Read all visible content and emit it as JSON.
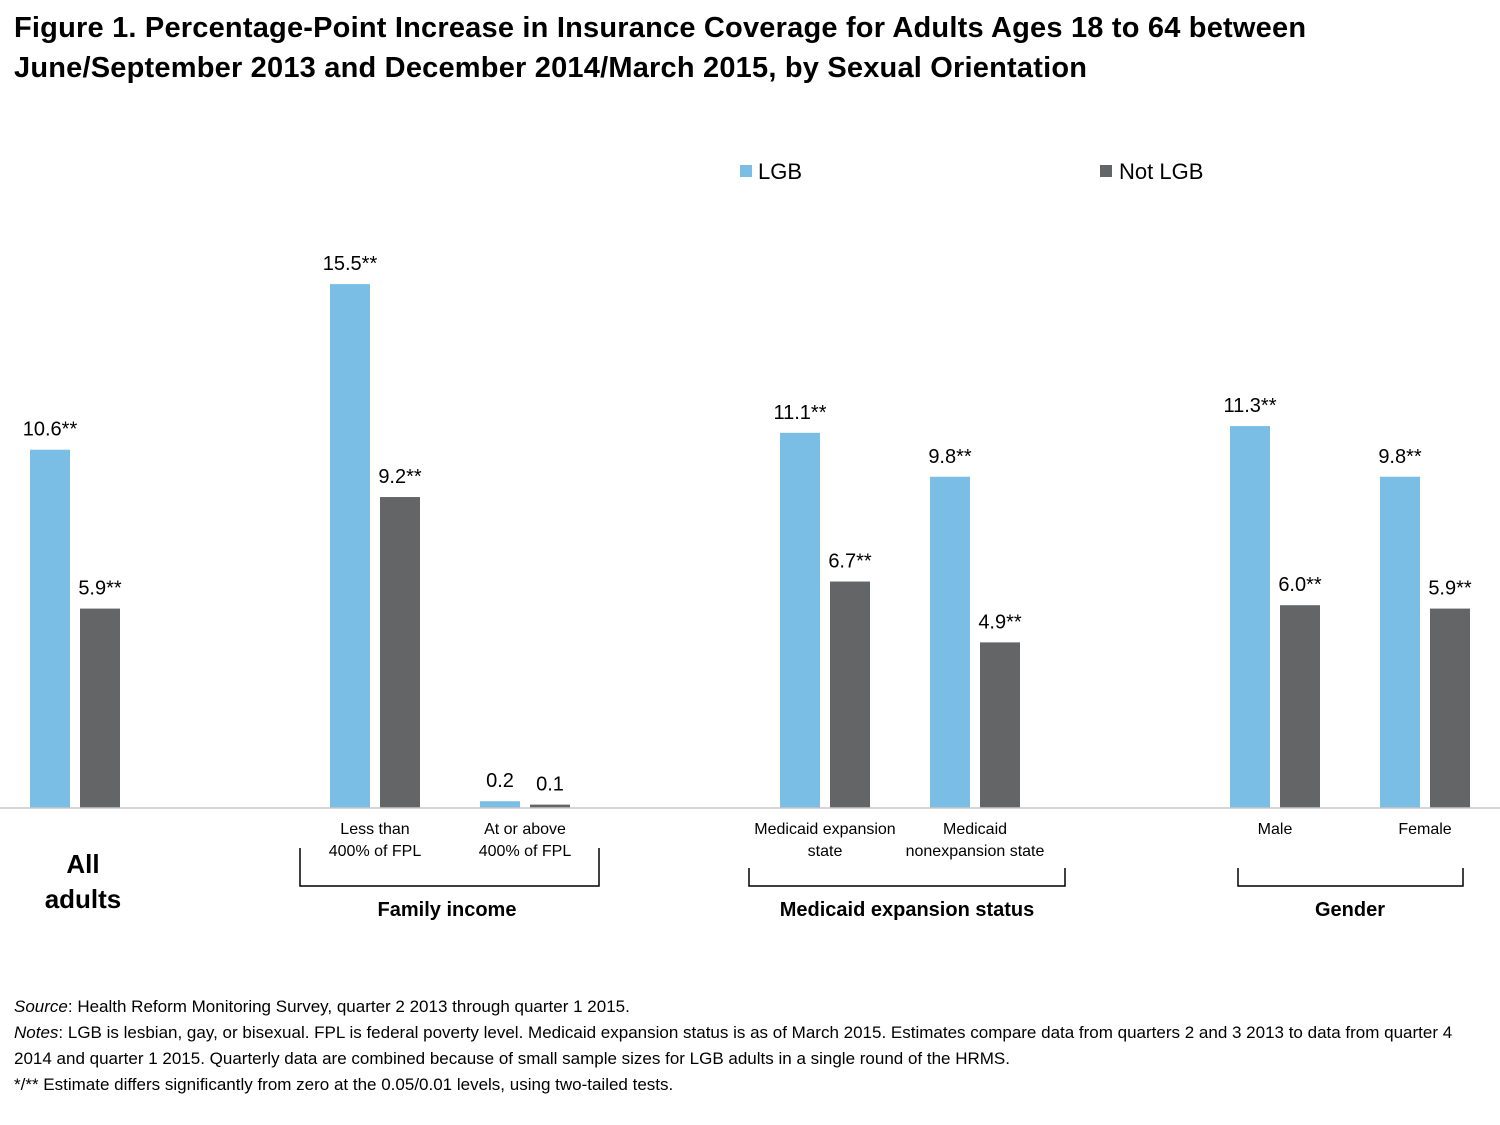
{
  "title": "Figure 1. Percentage-Point Increase in Insurance Coverage for Adults Ages 18 to 64 between June/September 2013 and December 2014/March 2015, by Sexual Orientation",
  "chart_data": {
    "type": "bar",
    "title": "Figure 1. Percentage-Point Increase in Insurance Coverage for Adults Ages 18 to 64 between June/September 2013 and December 2014/March 2015, by Sexual Orientation",
    "xlabel": "",
    "ylabel": "",
    "ylim": [
      0,
      17
    ],
    "grid": false,
    "legend": "top-center",
    "categories": [
      {
        "id": "all",
        "lines": [
          "All",
          "adults"
        ]
      },
      {
        "id": "lt400",
        "lines": [
          "Less than",
          "400% of FPL"
        ]
      },
      {
        "id": "ge400",
        "lines": [
          "At or above",
          "400% of FPL"
        ]
      },
      {
        "id": "medexp",
        "lines": [
          "Medicaid expansion",
          "state"
        ]
      },
      {
        "id": "mednonexp",
        "lines": [
          "Medicaid",
          "nonexpansion state"
        ]
      },
      {
        "id": "male",
        "lines": [
          "Male"
        ]
      },
      {
        "id": "female",
        "lines": [
          "Female"
        ]
      }
    ],
    "groups": [
      {
        "label": "Family income",
        "members": [
          "lt400",
          "ge400"
        ]
      },
      {
        "label": "Medicaid expansion status",
        "members": [
          "medexp",
          "mednonexp"
        ]
      },
      {
        "label": "Gender",
        "members": [
          "male",
          "female"
        ]
      }
    ],
    "series": [
      {
        "name": "LGB",
        "color": "#7ABDE5",
        "values": [
          10.6,
          15.5,
          0.2,
          11.1,
          9.8,
          11.3,
          9.8
        ],
        "labels": [
          "10.6**",
          "15.5**",
          "0.2",
          "11.1**",
          "9.8**",
          "11.3**",
          "9.8**"
        ]
      },
      {
        "name": "Not LGB",
        "color": "#646567",
        "values": [
          5.9,
          9.2,
          0.1,
          6.7,
          4.9,
          6.0,
          5.9
        ],
        "labels": [
          "5.9**",
          "9.2**",
          "0.1",
          "6.7**",
          "4.9**",
          "6.0**",
          "5.9**"
        ]
      }
    ]
  },
  "footer": {
    "source_label": "Source",
    "source_text": ": Health Reform Monitoring Survey, quarter 2 2013 through quarter 1 2015.",
    "notes_label": "Notes",
    "notes_text": ": LGB is lesbian, gay, or bisexual.  FPL is federal poverty level.  Medicaid expansion status is as of March 2015. Estimates compare data from quarters 2 and 3 2013 to data from quarter 4 2014 and quarter 1 2015. Quarterly data are combined because of small sample sizes for LGB adults in a single round of the HRMS.",
    "significance_text": "*/** Estimate differs significantly from zero at the 0.05/0.01 levels, using two-tailed tests."
  }
}
